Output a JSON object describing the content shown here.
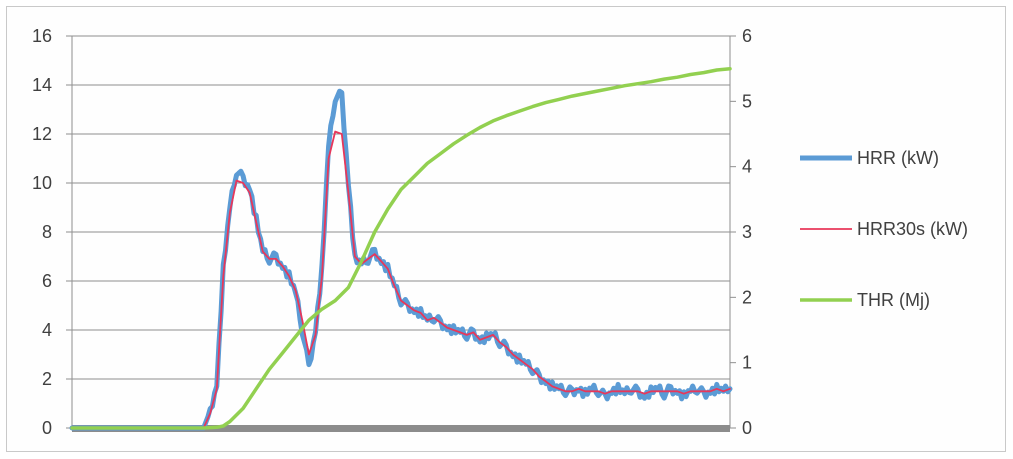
{
  "chart_data": {
    "type": "line",
    "title": "",
    "xlabel": "",
    "ylabel": "",
    "y_left": {
      "ylim": [
        0,
        16
      ],
      "ticks": [
        "0",
        "2",
        "4",
        "6",
        "8",
        "10",
        "12",
        "14",
        "16"
      ]
    },
    "y_right": {
      "ylim": [
        0,
        6
      ],
      "ticks": [
        "0",
        "1",
        "2",
        "3",
        "4",
        "5",
        "6"
      ]
    },
    "grid": true,
    "legend_position": "right",
    "x_range": [
      0,
      100
    ],
    "series": [
      {
        "name": "HRR (kW)",
        "axis": "left",
        "color": "#5b9bd5",
        "style": "thick-noisy",
        "x": [
          0,
          10,
          20,
          21,
          22,
          23,
          24,
          25,
          26,
          27,
          28,
          29,
          30,
          31,
          32,
          33,
          34,
          35,
          36,
          37,
          38,
          39,
          40,
          41,
          42,
          43,
          44,
          45,
          46,
          47,
          48,
          49,
          50,
          51,
          52,
          53,
          54,
          55,
          56,
          57,
          58,
          59,
          60,
          61,
          62,
          63,
          64,
          65,
          66,
          67,
          68,
          69,
          70,
          71,
          72,
          73,
          74,
          75,
          76,
          77,
          78,
          79,
          80,
          81,
          82,
          83,
          84,
          85,
          86,
          87,
          88,
          89,
          90,
          91,
          92,
          93,
          94,
          95,
          96,
          97,
          98,
          99,
          100
        ],
        "values": [
          0,
          0,
          0,
          0.7,
          1.8,
          6.5,
          9.0,
          10.5,
          10.2,
          9.8,
          8.5,
          7.2,
          6.9,
          7.0,
          6.6,
          6.2,
          5.5,
          4.0,
          2.5,
          4.0,
          6.5,
          11.5,
          13.5,
          13.6,
          10.0,
          6.9,
          6.7,
          6.9,
          7.2,
          6.8,
          6.5,
          5.8,
          5.2,
          5.0,
          4.8,
          4.7,
          4.4,
          4.5,
          4.3,
          4.1,
          4.0,
          3.9,
          3.8,
          3.9,
          3.6,
          3.7,
          3.8,
          3.5,
          3.3,
          3.0,
          2.8,
          2.6,
          2.4,
          2.1,
          1.9,
          1.7,
          1.6,
          1.5,
          1.5,
          1.6,
          1.4,
          1.6,
          1.5,
          1.3,
          1.5,
          1.6,
          1.4,
          1.6,
          1.5,
          1.3,
          1.5,
          1.6,
          1.4,
          1.6,
          1.5,
          1.3,
          1.5,
          1.6,
          1.4,
          1.5,
          1.6,
          1.5,
          1.6
        ]
      },
      {
        "name": "HRR30s (kW)",
        "axis": "left",
        "color": "#e8375a",
        "style": "thin",
        "x": [
          0,
          10,
          20,
          21,
          22,
          23,
          24,
          25,
          26,
          27,
          28,
          29,
          30,
          31,
          32,
          33,
          34,
          35,
          36,
          37,
          38,
          39,
          40,
          41,
          42,
          43,
          44,
          45,
          46,
          47,
          48,
          49,
          50,
          51,
          52,
          53,
          54,
          55,
          56,
          57,
          58,
          59,
          60,
          61,
          62,
          63,
          64,
          65,
          66,
          67,
          68,
          69,
          70,
          71,
          72,
          73,
          74,
          75,
          76,
          77,
          78,
          79,
          80,
          81,
          82,
          83,
          84,
          85,
          86,
          87,
          88,
          89,
          90,
          91,
          92,
          93,
          94,
          95,
          96,
          97,
          98,
          99,
          100
        ],
        "values": [
          0,
          0,
          0,
          0.6,
          1.6,
          6.2,
          8.8,
          10.1,
          10.0,
          9.6,
          8.4,
          7.2,
          6.9,
          6.9,
          6.6,
          6.2,
          5.6,
          4.4,
          3.0,
          3.8,
          6.2,
          11.0,
          12.1,
          12.0,
          9.6,
          7.0,
          6.7,
          6.9,
          7.1,
          6.8,
          6.5,
          5.8,
          5.2,
          5.0,
          4.8,
          4.7,
          4.4,
          4.5,
          4.3,
          4.1,
          4.0,
          3.9,
          3.8,
          3.9,
          3.6,
          3.7,
          3.8,
          3.5,
          3.3,
          3.0,
          2.8,
          2.6,
          2.4,
          2.1,
          1.9,
          1.7,
          1.6,
          1.5,
          1.5,
          1.6,
          1.5,
          1.5,
          1.5,
          1.4,
          1.5,
          1.5,
          1.5,
          1.5,
          1.5,
          1.4,
          1.5,
          1.5,
          1.5,
          1.5,
          1.5,
          1.4,
          1.5,
          1.5,
          1.5,
          1.5,
          1.6,
          1.5,
          1.6
        ]
      },
      {
        "name": "THR (Mj)",
        "axis": "right",
        "color": "#92d050",
        "style": "medium",
        "x": [
          0,
          10,
          20,
          22,
          23,
          24,
          26,
          28,
          30,
          32,
          34,
          36,
          38,
          40,
          42,
          44,
          46,
          48,
          50,
          52,
          54,
          56,
          58,
          60,
          62,
          64,
          66,
          68,
          70,
          72,
          74,
          76,
          78,
          80,
          82,
          84,
          86,
          88,
          90,
          92,
          94,
          96,
          98,
          100
        ],
        "values": [
          0,
          0,
          0,
          0.01,
          0.03,
          0.1,
          0.3,
          0.6,
          0.9,
          1.15,
          1.4,
          1.65,
          1.82,
          1.95,
          2.15,
          2.55,
          3.0,
          3.35,
          3.65,
          3.85,
          4.05,
          4.2,
          4.35,
          4.48,
          4.6,
          4.7,
          4.78,
          4.85,
          4.92,
          4.98,
          5.03,
          5.08,
          5.12,
          5.16,
          5.2,
          5.24,
          5.27,
          5.3,
          5.34,
          5.37,
          5.41,
          5.44,
          5.48,
          5.5
        ]
      }
    ]
  }
}
